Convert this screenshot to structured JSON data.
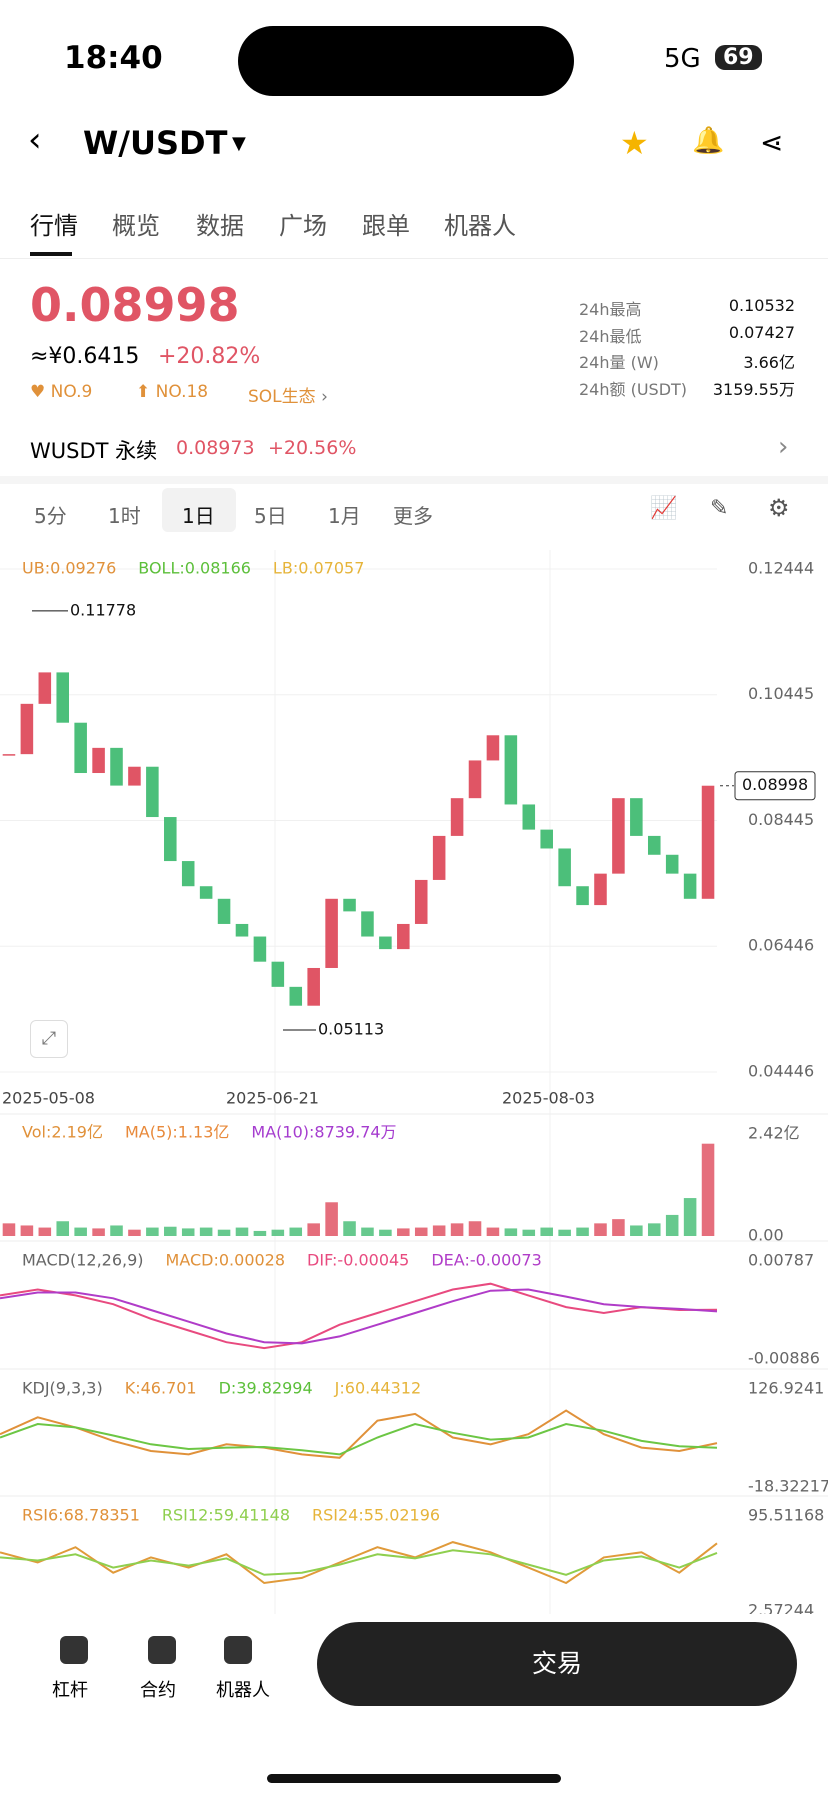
{
  "status": {
    "time": "18:40",
    "network": "5G",
    "battery": "69"
  },
  "header": {
    "pair": "W/USDT"
  },
  "tabs": [
    "行情",
    "概览",
    "数据",
    "广场",
    "跟单",
    "机器人"
  ],
  "price": {
    "last": "0.08998",
    "cny": "≈¥0.6415",
    "change": "+20.82%",
    "badges": [
      "NO.9",
      "NO.18",
      "SOL生态"
    ]
  },
  "stats": [
    {
      "label": "24h最高",
      "value": "0.10532"
    },
    {
      "label": "24h最低",
      "value": "0.07427"
    },
    {
      "label": "24h量 (W)",
      "value": "3.66亿"
    },
    {
      "label": "24h额 (USDT)",
      "value": "3159.55万"
    }
  ],
  "perp": {
    "name": "WUSDT 永续",
    "price": "0.08973",
    "change": "+20.56%"
  },
  "timeframes": [
    "5分",
    "1时",
    "1日",
    "5日",
    "1月",
    "更多"
  ],
  "kline": {
    "legend": [
      {
        "text": "UB:0.09276",
        "color": "#e0913a"
      },
      {
        "text": "BOLL:0.08166",
        "color": "#5cbf3a"
      },
      {
        "text": "LB:0.07057",
        "color": "#e6b43a"
      }
    ],
    "ylim": [
      0.04446,
      0.12444
    ],
    "yticks": [
      0.12444,
      0.10445,
      0.08445,
      0.06446,
      0.04446
    ],
    "high": 0.11778,
    "low": 0.05113,
    "last": 0.08998,
    "dates": [
      "2025-05-08",
      "2025-06-21",
      "2025-08-03"
    ],
    "up_color": "#e05565",
    "down_color": "#4cbf7a",
    "closes": [
      0.095,
      0.103,
      0.108,
      0.1,
      0.092,
      0.096,
      0.09,
      0.093,
      0.085,
      0.078,
      0.074,
      0.072,
      0.068,
      0.066,
      0.062,
      0.058,
      0.055,
      0.061,
      0.072,
      0.07,
      0.066,
      0.064,
      0.068,
      0.075,
      0.082,
      0.088,
      0.094,
      0.098,
      0.087,
      0.083,
      0.08,
      0.074,
      0.071,
      0.076,
      0.088,
      0.082,
      0.079,
      0.076,
      0.072,
      0.08998
    ]
  },
  "panels": [
    {
      "legend": [
        {
          "text": "Vol:2.19亿",
          "color": "#e0913a"
        },
        {
          "text": "MA(5):1.13亿",
          "color": "#e8893a"
        },
        {
          "text": "MA(10):8739.74万",
          "color": "#a53ccf"
        }
      ],
      "ylim": [
        0,
        2.42
      ],
      "yticks": [
        {
          "value": 2.42,
          "label": "2.42亿"
        },
        {
          "value": 0,
          "label": "0.00"
        }
      ],
      "bars": [
        0.3,
        0.25,
        0.2,
        0.35,
        0.2,
        0.18,
        0.25,
        0.15,
        0.2,
        0.22,
        0.18,
        0.2,
        0.15,
        0.2,
        0.12,
        0.15,
        0.2,
        0.3,
        0.8,
        0.35,
        0.2,
        0.15,
        0.18,
        0.2,
        0.25,
        0.3,
        0.35,
        0.2,
        0.18,
        0.15,
        0.2,
        0.15,
        0.2,
        0.3,
        0.4,
        0.25,
        0.3,
        0.5,
        0.9,
        2.19
      ]
    },
    {
      "legend": [
        {
          "text": "MACD(12,26,9)",
          "color": "#666"
        },
        {
          "text": "MACD:0.00028",
          "color": "#e0913a"
        },
        {
          "text": "DIF:-0.00045",
          "color": "#e84a7f"
        },
        {
          "text": "DEA:-0.00073",
          "color": "#b03cc8"
        }
      ],
      "ylim": [
        -0.00886,
        0.00787
      ],
      "yticks": [
        0.00787,
        -0.00886
      ],
      "series": [
        {
          "color": "#e84a7f",
          "values": [
            0.002,
            0.003,
            0.002,
            0.0005,
            -0.002,
            -0.004,
            -0.006,
            -0.007,
            -0.006,
            -0.003,
            -0.001,
            0.001,
            0.003,
            0.004,
            0.002,
            0,
            -0.001,
            0,
            -0.0005,
            -0.00045
          ]
        },
        {
          "color": "#b03cc8",
          "values": [
            0.0015,
            0.0025,
            0.0025,
            0.0015,
            -0.0005,
            -0.0025,
            -0.0045,
            -0.006,
            -0.0062,
            -0.005,
            -0.003,
            -0.001,
            0.001,
            0.0028,
            0.003,
            0.0018,
            0.0005,
            0,
            -0.0003,
            -0.00073
          ]
        }
      ]
    },
    {
      "legend": [
        {
          "text": "KDJ(9,3,3)",
          "color": "#666"
        },
        {
          "text": "K:46.701",
          "color": "#e0913a"
        },
        {
          "text": "D:39.82994",
          "color": "#5cbf3a"
        },
        {
          "text": "J:60.44312",
          "color": "#e6b43a"
        }
      ],
      "ylim": [
        -18.32217,
        126.9241
      ],
      "yticks": [
        126.9241,
        -18.32217
      ],
      "series": [
        {
          "color": "#e0913a",
          "values": [
            60,
            85,
            70,
            50,
            35,
            30,
            45,
            40,
            30,
            25,
            80,
            90,
            55,
            45,
            60,
            95,
            60,
            40,
            35,
            46.7
          ]
        },
        {
          "color": "#6cc644",
          "values": [
            55,
            75,
            70,
            58,
            45,
            38,
            40,
            41,
            36,
            30,
            55,
            75,
            62,
            52,
            55,
            75,
            65,
            50,
            42,
            39.8
          ]
        }
      ]
    },
    {
      "legend": [
        {
          "text": "RSI6:68.78351",
          "color": "#e0913a"
        },
        {
          "text": "RSI12:59.41148",
          "color": "#8fcf4f"
        },
        {
          "text": "RSI24:55.02196",
          "color": "#e6b43a"
        }
      ],
      "ylim": [
        2.57244,
        95.51168
      ],
      "yticks": [
        95.51168,
        2.57244
      ],
      "series": [
        {
          "color": "#e09a3a",
          "values": [
            60,
            50,
            65,
            40,
            55,
            45,
            58,
            30,
            35,
            50,
            65,
            55,
            70,
            60,
            45,
            30,
            55,
            60,
            40,
            68.8
          ]
        },
        {
          "color": "#8fcf4f",
          "values": [
            55,
            52,
            58,
            45,
            52,
            47,
            54,
            38,
            40,
            48,
            58,
            54,
            62,
            58,
            48,
            38,
            52,
            56,
            45,
            59.4
          ]
        }
      ]
    }
  ],
  "bottom": {
    "nav": [
      "杠杆",
      "合约",
      "机器人"
    ],
    "button": "交易"
  }
}
